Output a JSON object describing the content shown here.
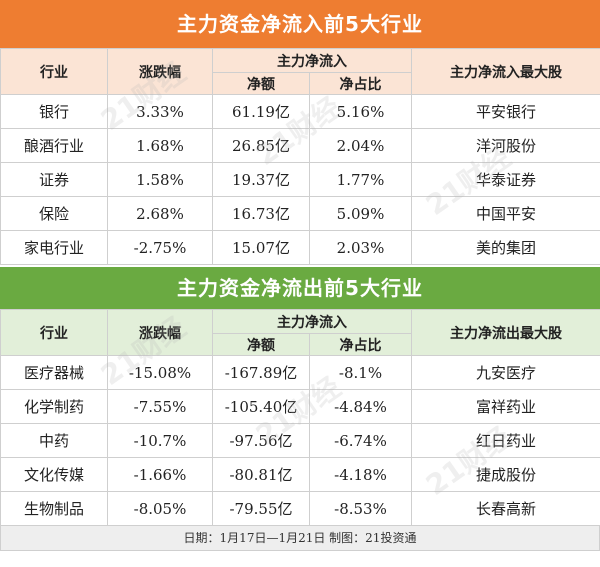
{
  "inflow": {
    "title": "主力资金净流入前5大行业",
    "headers": {
      "industry": "行业",
      "change": "涨跌幅",
      "main_flow": "主力净流入",
      "net_amount": "净额",
      "net_ratio": "净占比",
      "top_stock": "主力净流入最大股"
    },
    "rows": [
      {
        "industry": "银行",
        "change": "3.33%",
        "net_amount": "61.19亿",
        "net_ratio": "5.16%",
        "top_stock": "平安银行"
      },
      {
        "industry": "酿酒行业",
        "change": "1.68%",
        "net_amount": "26.85亿",
        "net_ratio": "2.04%",
        "top_stock": "洋河股份"
      },
      {
        "industry": "证券",
        "change": "1.58%",
        "net_amount": "19.37亿",
        "net_ratio": "1.77%",
        "top_stock": "华泰证券"
      },
      {
        "industry": "保险",
        "change": "2.68%",
        "net_amount": "16.73亿",
        "net_ratio": "5.09%",
        "top_stock": "中国平安"
      },
      {
        "industry": "家电行业",
        "change": "-2.75%",
        "net_amount": "15.07亿",
        "net_ratio": "2.03%",
        "top_stock": "美的集团"
      }
    ]
  },
  "outflow": {
    "title": "主力资金净流出前5大行业",
    "headers": {
      "industry": "行业",
      "change": "涨跌幅",
      "main_flow": "主力净流入",
      "net_amount": "净额",
      "net_ratio": "净占比",
      "top_stock": "主力净流出最大股"
    },
    "rows": [
      {
        "industry": "医疗器械",
        "change": "-15.08%",
        "net_amount": "-167.89亿",
        "net_ratio": "-8.1%",
        "top_stock": "九安医疗"
      },
      {
        "industry": "化学制药",
        "change": "-7.55%",
        "net_amount": "-105.40亿",
        "net_ratio": "-4.84%",
        "top_stock": "富祥药业"
      },
      {
        "industry": "中药",
        "change": "-10.7%",
        "net_amount": "-97.56亿",
        "net_ratio": "-6.74%",
        "top_stock": "红日药业"
      },
      {
        "industry": "文化传媒",
        "change": "-1.66%",
        "net_amount": "-80.81亿",
        "net_ratio": "-4.18%",
        "top_stock": "捷成股份"
      },
      {
        "industry": "生物制品",
        "change": "-8.05%",
        "net_amount": "-79.55亿",
        "net_ratio": "-8.53%",
        "top_stock": "长春高新"
      }
    ]
  },
  "footer": "日期：1月17日—1月21日  制图：21投资通",
  "watermark": "21财经",
  "colors": {
    "inflow_title": "#ee7d31",
    "inflow_header": "#fbe4d5",
    "outflow_title": "#6aaa41",
    "outflow_header": "#e2efd9"
  }
}
